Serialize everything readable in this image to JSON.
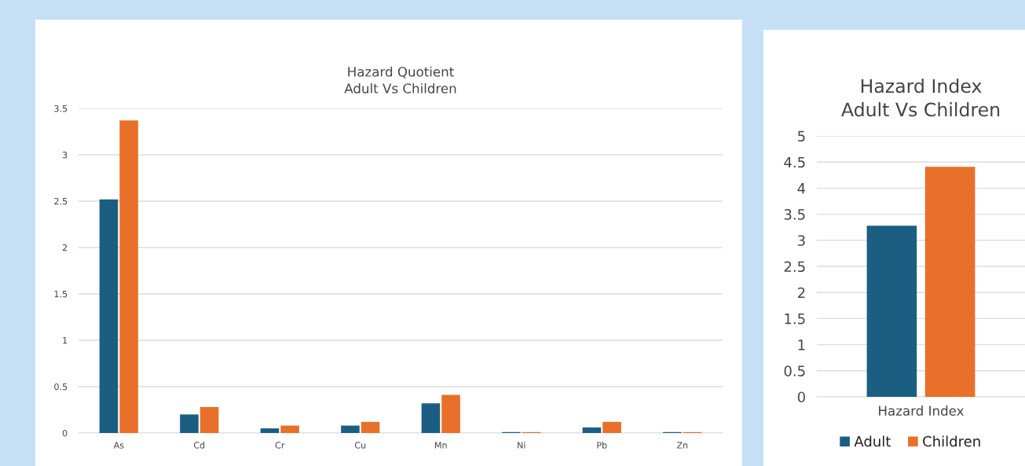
{
  "chart_data": [
    {
      "type": "bar",
      "title": "Hazard Quotient\nAdult Vs Children",
      "categories": [
        "As",
        "Cd",
        "Cr",
        "Cu",
        "Mn",
        "Ni",
        "Pb",
        "Zn"
      ],
      "series": [
        {
          "color": "#1b5e82",
          "values": [
            2.52,
            0.2,
            0.05,
            0.08,
            0.32,
            0.01,
            0.06,
            0.01
          ]
        },
        {
          "color": "#e8702a",
          "values": [
            3.37,
            0.28,
            0.08,
            0.12,
            0.41,
            0.01,
            0.12,
            0.01
          ]
        }
      ],
      "ylim": [
        0,
        3.5
      ],
      "yticks": [
        0,
        0.5,
        1,
        1.5,
        2,
        2.5,
        3,
        3.5
      ],
      "grid": "y",
      "legend": false
    },
    {
      "type": "bar",
      "title": "Hazard Index\nAdult Vs Children",
      "categories": [
        "Hazard Index"
      ],
      "series": [
        {
          "name": "Adult",
          "color": "#1b5e82",
          "values": [
            3.28
          ]
        },
        {
          "name": "Children",
          "color": "#e8702a",
          "values": [
            4.41
          ]
        }
      ],
      "ylim": [
        0,
        5
      ],
      "yticks": [
        0,
        0.5,
        1,
        1.5,
        2,
        2.5,
        3,
        3.5,
        4,
        4.5,
        5
      ],
      "grid": "y",
      "legend": "bottom"
    }
  ]
}
